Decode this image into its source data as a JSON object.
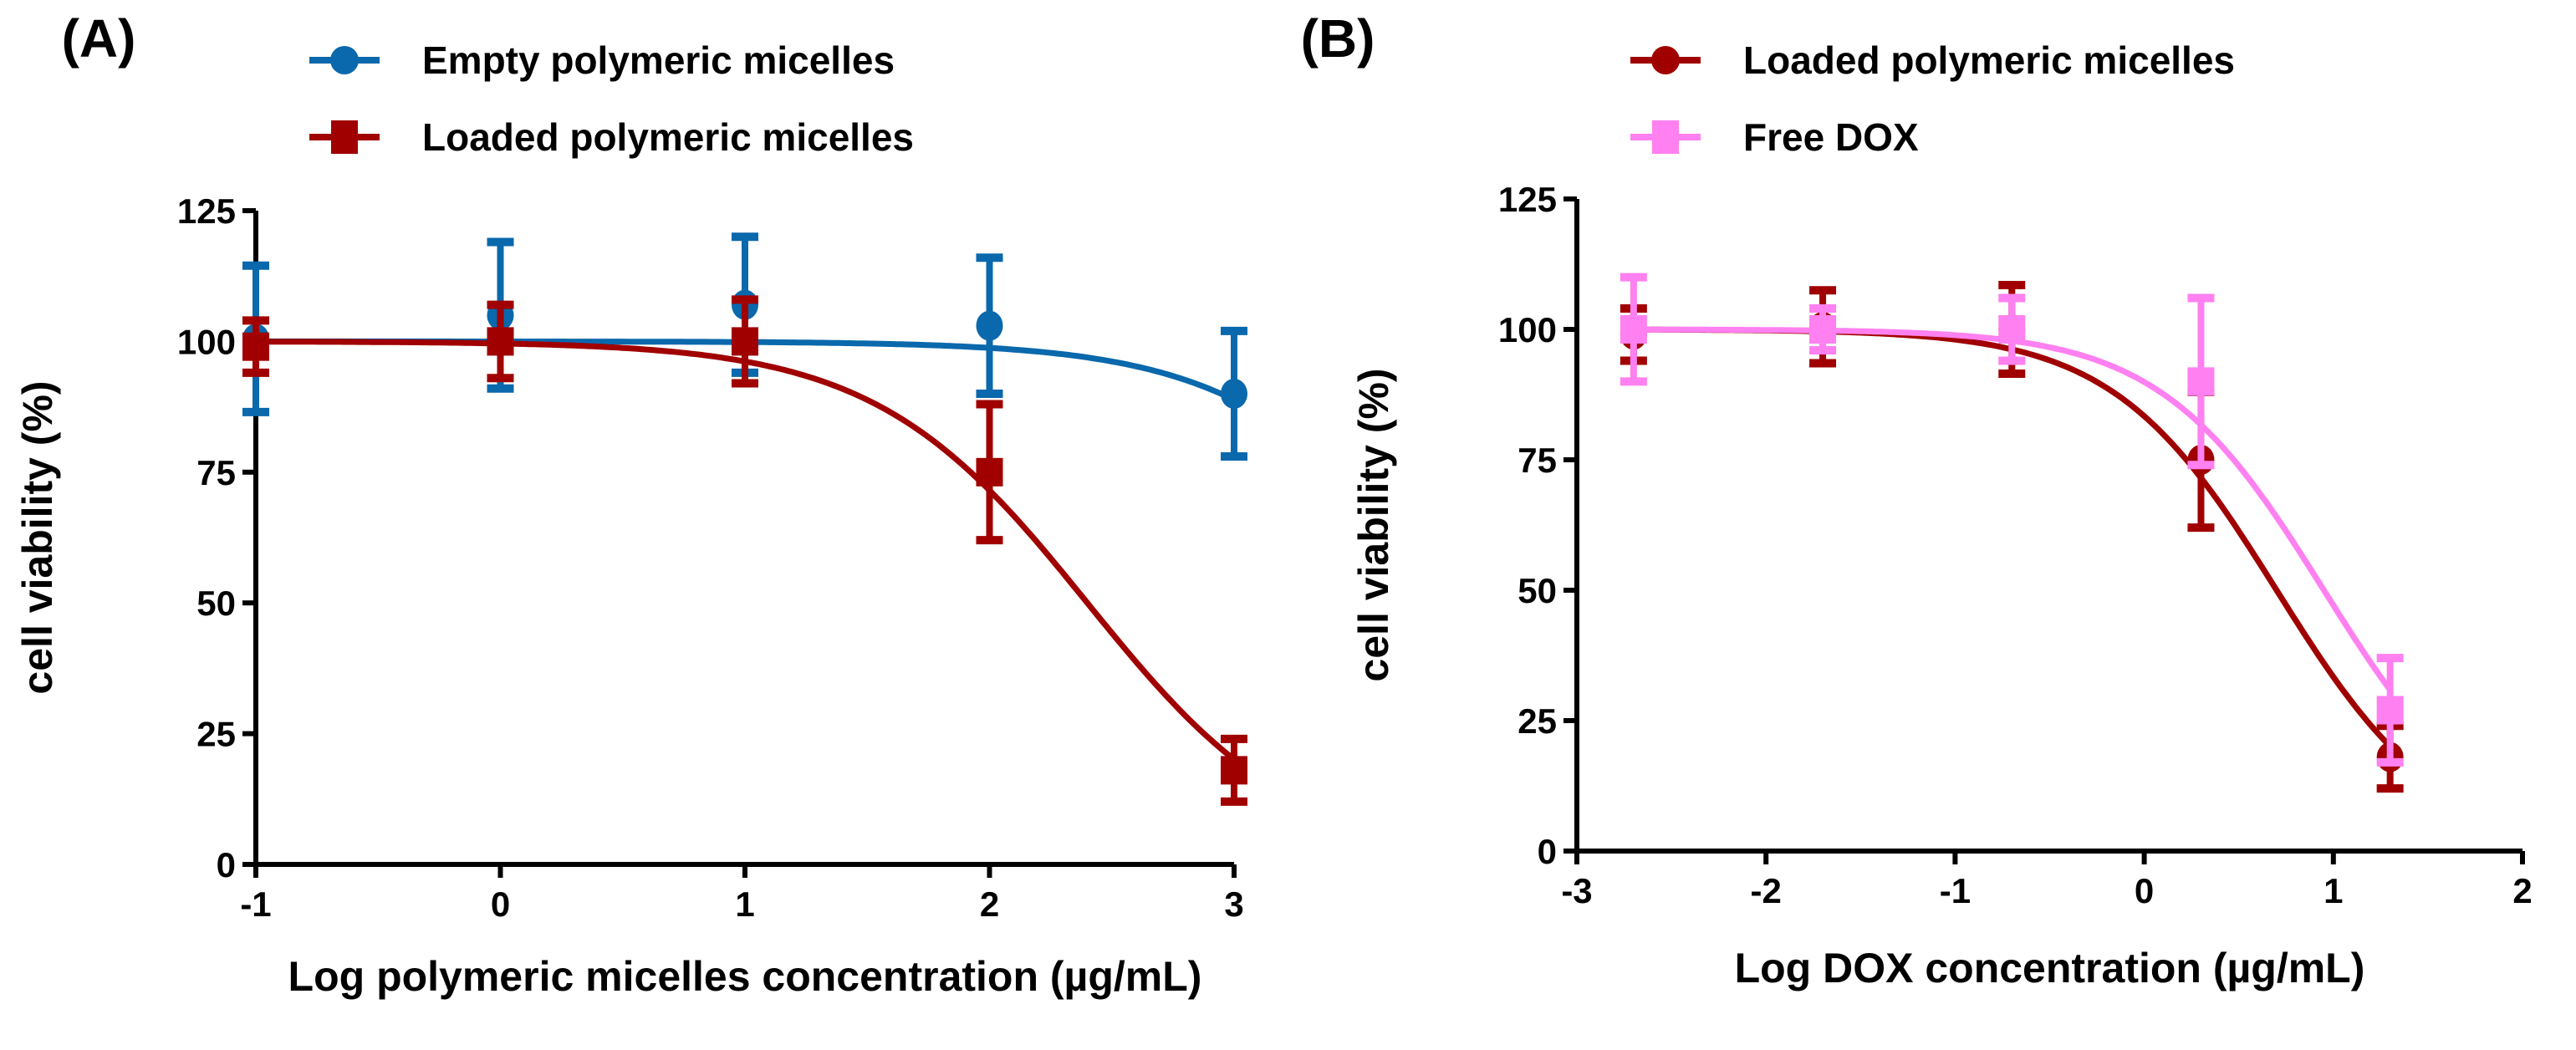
{
  "chart_data": [
    {
      "type": "line",
      "panel_label": "(A)",
      "xlabel": "Log polymeric micelles concentration (µg/mL)",
      "ylabel": "cell viability (%)",
      "xlim": [
        -1,
        3
      ],
      "ylim": [
        0,
        125
      ],
      "xticks": [
        -1,
        0,
        1,
        2,
        3
      ],
      "yticks": [
        0,
        25,
        50,
        75,
        100,
        125
      ],
      "grid": false,
      "legend_position": "top",
      "series": [
        {
          "name": "Empty polymeric micelles",
          "color": "#0a68ac",
          "marker": "circle",
          "x": [
            -1,
            0,
            1,
            2,
            3
          ],
          "y": [
            100.5,
            105,
            107,
            103,
            90
          ],
          "err": [
            14,
            14,
            13,
            13,
            12
          ],
          "fit": {
            "top": 100,
            "bottom": 0,
            "logIC50": 3.9,
            "hill": 1
          }
        },
        {
          "name": "Loaded polymeric micelles",
          "color": "#a00000",
          "marker": "square",
          "x": [
            -1,
            0,
            1,
            2,
            3
          ],
          "y": [
            99,
            100,
            100,
            75,
            18
          ],
          "err": [
            5,
            7,
            8,
            13,
            6
          ],
          "fit": {
            "top": 100,
            "bottom": 0,
            "logIC50": 2.4,
            "hill": 1
          }
        }
      ]
    },
    {
      "type": "line",
      "panel_label": "(B)",
      "xlabel": "Log DOX concentration (µg/mL)",
      "ylabel": "cell viability (%)",
      "xlim": [
        -3,
        2
      ],
      "ylim": [
        0,
        125
      ],
      "xticks": [
        -3,
        -2,
        -1,
        0,
        1,
        2
      ],
      "yticks": [
        0,
        25,
        50,
        75,
        100,
        125
      ],
      "grid": false,
      "legend_position": "top",
      "series": [
        {
          "name": "Loaded polymeric micelles",
          "color": "#a00000",
          "marker": "circle",
          "x": [
            -2.7,
            -1.7,
            -0.7,
            0.3,
            1.3
          ],
          "y": [
            99,
            100.5,
            100,
            75,
            18
          ],
          "err": [
            5,
            7,
            8.5,
            13,
            6
          ],
          "fit": {
            "top": 100,
            "bottom": 0,
            "logIC50": 0.7,
            "hill": 1
          }
        },
        {
          "name": "Free DOX",
          "color": "#ff80f0",
          "marker": "square",
          "x": [
            -2.7,
            -1.7,
            -0.7,
            0.3,
            1.3
          ],
          "y": [
            100,
            100,
            100,
            90,
            27
          ],
          "err": [
            10,
            4,
            6,
            16,
            10
          ],
          "fit": {
            "top": 100,
            "bottom": 0,
            "logIC50": 0.95,
            "hill": 1
          }
        }
      ]
    }
  ]
}
